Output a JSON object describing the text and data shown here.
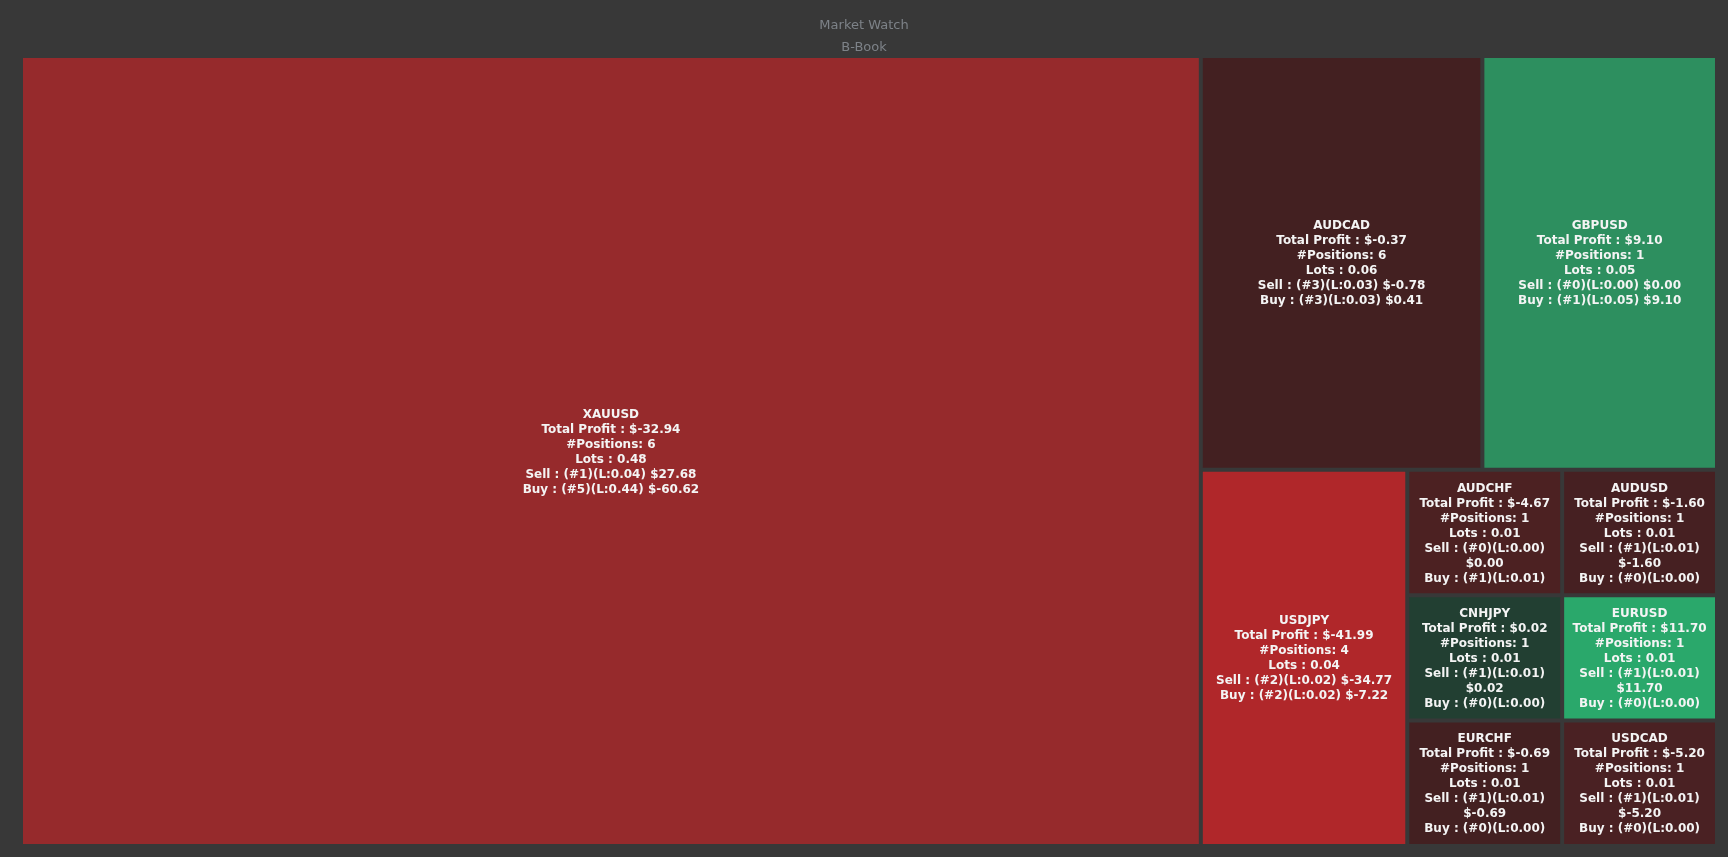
{
  "chart_data": {
    "type": "other",
    "title": "Market Watch",
    "subtitle": "B-Book",
    "categories": [
      "XAUUSD",
      "AUDCAD",
      "GBPUSD",
      "USDJPY",
      "AUDCHF",
      "AUDUSD",
      "CNHJPY",
      "EURCHF",
      "EURUSD",
      "USDCAD"
    ],
    "values": [
      0.48,
      0.06,
      0.05,
      0.04,
      0.01,
      0.01,
      0.01,
      0.01,
      0.01,
      0.01
    ],
    "colors": [
      "#962a2c",
      "#432021",
      "#2d8f5f",
      "#b0272a",
      "#4c2122",
      "#462022",
      "#223f32",
      "#432021",
      "#2aa86b",
      "#4a2123"
    ],
    "value_labels": [
      "Total Profit : $-32.94\n#Positions: 6\nLots : 0.48\nSell : (#1)(L:0.04) $27.68\nBuy : (#5)(L:0.44) $-60.62",
      "Total Profit : $-0.37\n#Positions: 6\nLots : 0.06\nSell : (#3)(L:0.03) $-0.78\nBuy : (#3)(L:0.03) $0.41",
      "Total Profit : $9.10\n#Positions: 1\nLots : 0.05\nSell : (#0)(L:0.00) $0.00\nBuy : (#1)(L:0.05) $9.10",
      "Total Profit : $-41.99\n#Positions: 4\nLots : 0.04\nSell : (#2)(L:0.02) $-34.77\nBuy : (#2)(L:0.02) $-7.22",
      "Total Profit : $-4.67\n#Positions: 1\nLots : 0.01\nSell : (#0)(L:0.00)\n$0.00\nBuy : (#1)(L:0.01)",
      "Total Profit : $-1.60\n#Positions: 1\nLots : 0.01\nSell : (#1)(L:0.01)\n$-1.60\nBuy : (#0)(L:0.00)",
      "Total Profit : $0.02\n#Positions: 1\nLots : 0.01\nSell : (#1)(L:0.01)\n$0.02\nBuy : (#0)(L:0.00)",
      "Total Profit : $-0.69\n#Positions: 1\nLots : 0.01\nSell : (#1)(L:0.01)\n$-0.69\nBuy : (#0)(L:0.00)",
      "Total Profit : $11.70\n#Positions: 1\nLots : 0.01\nSell : (#1)(L:0.01)\n$11.70\nBuy : (#0)(L:0.00)",
      "Total Profit : $-5.20\n#Positions: 1\nLots : 0.01\nSell : (#1)(L:0.01)\n$-5.20\nBuy : (#0)(L:0.00)"
    ]
  }
}
